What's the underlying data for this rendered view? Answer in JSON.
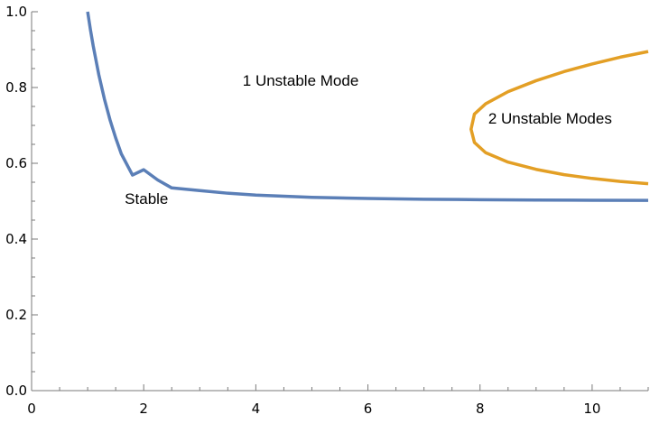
{
  "chart_data": {
    "type": "line",
    "title": "",
    "xlabel": "",
    "ylabel": "",
    "xlim": [
      0,
      11
    ],
    "ylim": [
      0,
      1.0
    ],
    "grid": false,
    "x_ticks": [
      "0",
      "2",
      "4",
      "6",
      "8",
      "10"
    ],
    "y_ticks": [
      "0.0",
      "0.2",
      "0.4",
      "0.6",
      "0.8",
      "1.0"
    ],
    "series": [
      {
        "color": "#5b7fb7",
        "x": [
          1.0,
          1.05,
          1.1,
          1.2,
          1.3,
          1.4,
          1.5,
          1.6,
          1.8,
          2.0,
          2.25,
          2.5,
          3.0,
          3.5,
          4.0,
          5.0,
          6.0,
          7.0,
          8.0,
          9.0,
          10.0,
          11.0
        ],
        "y": [
          1.0,
          0.952,
          0.909,
          0.833,
          0.769,
          0.714,
          0.667,
          0.625,
          0.569,
          0.583,
          0.556,
          0.535,
          0.528,
          0.521,
          0.516,
          0.51,
          0.507,
          0.505,
          0.504,
          0.503,
          0.5025,
          0.502
        ]
      },
      {
        "color": "#e39f25",
        "x": [
          11.0,
          10.5,
          10.0,
          9.5,
          9.0,
          8.5,
          8.1,
          7.9,
          7.84,
          7.9,
          8.1,
          8.5,
          9.0,
          9.5,
          10.0,
          10.5,
          11.0
        ],
        "y": [
          0.895,
          0.88,
          0.862,
          0.842,
          0.818,
          0.789,
          0.757,
          0.73,
          0.69,
          0.655,
          0.628,
          0.603,
          0.584,
          0.57,
          0.56,
          0.552,
          0.546
        ]
      }
    ],
    "annotations": [
      {
        "text": "1 Unstable Mode",
        "x": 4.8,
        "y": 0.805
      },
      {
        "text": "2 Unstable Modes",
        "x": 9.25,
        "y": 0.705
      },
      {
        "text": "Stable",
        "x": 2.05,
        "y": 0.493
      }
    ]
  }
}
